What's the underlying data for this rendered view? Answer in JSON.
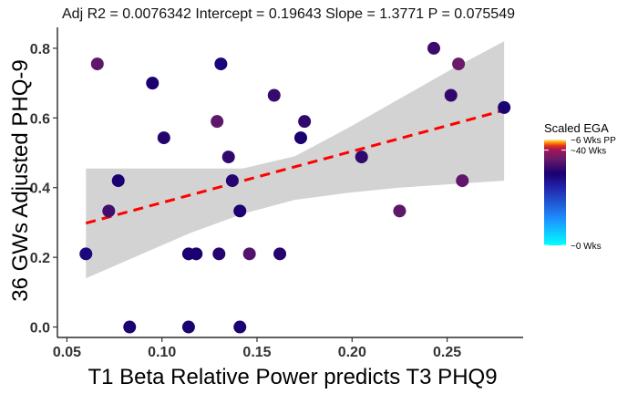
{
  "chart_data": {
    "type": "scatter",
    "title": "Adj R2 =  0.0076342 Intercept = 0.19643  Slope = 1.3771  P = 0.075549",
    "xlabel": "T1 Beta Relative Power predicts T3 PHQ9",
    "ylabel": "36 GWs Adjusted PHQ-9",
    "xlim": [
      0.045,
      0.29
    ],
    "ylim": [
      -0.03,
      0.86
    ],
    "x_ticks": [
      "0.05",
      "0.10",
      "0.15",
      "0.20",
      "0.25"
    ],
    "y_ticks": [
      "0.0",
      "0.2",
      "0.4",
      "0.6",
      "0.8"
    ],
    "grid": false,
    "points": [
      {
        "x": 0.06,
        "y": 0.21,
        "ega": 0.65
      },
      {
        "x": 0.066,
        "y": 0.755,
        "ega": 0.8
      },
      {
        "x": 0.072,
        "y": 0.333,
        "ega": 0.75
      },
      {
        "x": 0.077,
        "y": 0.42,
        "ega": 0.68
      },
      {
        "x": 0.083,
        "y": 0.0,
        "ega": 0.67
      },
      {
        "x": 0.095,
        "y": 0.7,
        "ega": 0.68
      },
      {
        "x": 0.101,
        "y": 0.543,
        "ega": 0.7
      },
      {
        "x": 0.114,
        "y": 0.0,
        "ega": 0.67
      },
      {
        "x": 0.114,
        "y": 0.21,
        "ega": 0.68
      },
      {
        "x": 0.118,
        "y": 0.21,
        "ega": 0.68
      },
      {
        "x": 0.129,
        "y": 0.59,
        "ega": 0.8
      },
      {
        "x": 0.13,
        "y": 0.21,
        "ega": 0.7
      },
      {
        "x": 0.131,
        "y": 0.755,
        "ega": 0.66
      },
      {
        "x": 0.135,
        "y": 0.488,
        "ega": 0.72
      },
      {
        "x": 0.137,
        "y": 0.42,
        "ega": 0.7
      },
      {
        "x": 0.141,
        "y": 0.0,
        "ega": 0.67
      },
      {
        "x": 0.141,
        "y": 0.333,
        "ega": 0.68
      },
      {
        "x": 0.146,
        "y": 0.21,
        "ega": 0.78
      },
      {
        "x": 0.159,
        "y": 0.665,
        "ega": 0.73
      },
      {
        "x": 0.162,
        "y": 0.21,
        "ega": 0.7
      },
      {
        "x": 0.173,
        "y": 0.543,
        "ega": 0.68
      },
      {
        "x": 0.175,
        "y": 0.59,
        "ega": 0.72
      },
      {
        "x": 0.205,
        "y": 0.488,
        "ega": 0.72
      },
      {
        "x": 0.225,
        "y": 0.333,
        "ega": 0.8
      },
      {
        "x": 0.243,
        "y": 0.8,
        "ega": 0.74
      },
      {
        "x": 0.252,
        "y": 0.665,
        "ega": 0.72
      },
      {
        "x": 0.256,
        "y": 0.755,
        "ega": 0.82
      },
      {
        "x": 0.258,
        "y": 0.42,
        "ega": 0.8
      },
      {
        "x": 0.28,
        "y": 0.63,
        "ega": 0.67
      }
    ],
    "fit_line": {
      "x": [
        0.06,
        0.28
      ],
      "y": [
        0.298,
        0.622
      ],
      "color": "#ff0000",
      "style": "dashed"
    },
    "confidence_band": {
      "color": "#d3d3d3",
      "x": [
        0.06,
        0.0875,
        0.115,
        0.1425,
        0.17,
        0.1975,
        0.225,
        0.2525,
        0.28
      ],
      "upper": [
        0.455,
        0.455,
        0.455,
        0.455,
        0.49,
        0.57,
        0.655,
        0.74,
        0.82
      ],
      "lower": [
        0.14,
        0.205,
        0.27,
        0.325,
        0.365,
        0.385,
        0.4,
        0.41,
        0.42
      ]
    },
    "legend": {
      "title": "Scaled EGA",
      "placement": "right",
      "labels": [
        "~6 Wks PP",
        "~40 Wks",
        "~0 Wks"
      ],
      "label_positions": [
        1.0,
        0.9,
        0.0
      ],
      "gradient_stops": [
        {
          "pos": 0.0,
          "color": "#00ffff"
        },
        {
          "pos": 0.25,
          "color": "#1e90ff"
        },
        {
          "pos": 0.55,
          "color": "#2222aa"
        },
        {
          "pos": 0.68,
          "color": "#1a0070"
        },
        {
          "pos": 0.82,
          "color": "#6a1b6a"
        },
        {
          "pos": 0.9,
          "color": "#a0145a"
        },
        {
          "pos": 0.94,
          "color": "#e03020"
        },
        {
          "pos": 0.97,
          "color": "#ff8c00"
        },
        {
          "pos": 1.0,
          "color": "#ffee88"
        }
      ]
    }
  }
}
